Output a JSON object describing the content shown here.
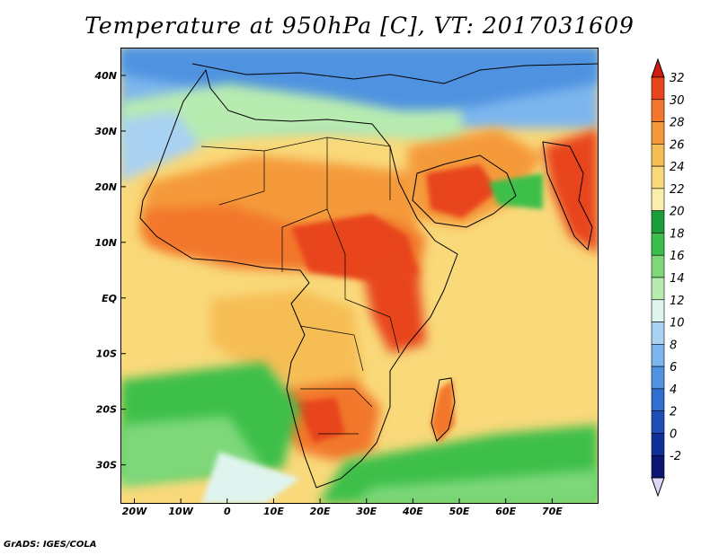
{
  "title": "Temperature at 950hPa [C], VT: 2017031609",
  "footer": "GrADS: IGES/COLA",
  "map": {
    "lon_range": [
      -23,
      80
    ],
    "lat_range": [
      -37,
      45
    ],
    "x_ticks": [
      {
        "lon": -20,
        "label": "20W"
      },
      {
        "lon": -10,
        "label": "10W"
      },
      {
        "lon": 0,
        "label": "0"
      },
      {
        "lon": 10,
        "label": "10E"
      },
      {
        "lon": 20,
        "label": "20E"
      },
      {
        "lon": 30,
        "label": "30E"
      },
      {
        "lon": 40,
        "label": "40E"
      },
      {
        "lon": 50,
        "label": "50E"
      },
      {
        "lon": 60,
        "label": "60E"
      },
      {
        "lon": 70,
        "label": "70E"
      }
    ],
    "y_ticks": [
      {
        "lat": 40,
        "label": "40N"
      },
      {
        "lat": 30,
        "label": "30N"
      },
      {
        "lat": 20,
        "label": "20N"
      },
      {
        "lat": 10,
        "label": "10N"
      },
      {
        "lat": 0,
        "label": "EQ"
      },
      {
        "lat": -10,
        "label": "10S"
      },
      {
        "lat": -20,
        "label": "20S"
      },
      {
        "lat": -30,
        "label": "30S"
      }
    ]
  },
  "colorbar": {
    "labels": [
      "32",
      "30",
      "28",
      "26",
      "24",
      "22",
      "20",
      "18",
      "16",
      "14",
      "12",
      "10",
      "8",
      "6",
      "4",
      "2",
      "0",
      "-2"
    ],
    "colors": [
      "#d01c0f",
      "#e8451c",
      "#f2772c",
      "#f59a3a",
      "#f7bd55",
      "#f9d97a",
      "#fbedaa",
      "#1a9e3a",
      "#3cbf4a",
      "#7ed87a",
      "#b7ebb0",
      "#dff4ee",
      "#a9d1f2",
      "#7db6ee",
      "#4f93e0",
      "#2f6fd0",
      "#1e4fb8",
      "#0f2f99",
      "#0a1670",
      "#ddd6f6"
    ]
  }
}
